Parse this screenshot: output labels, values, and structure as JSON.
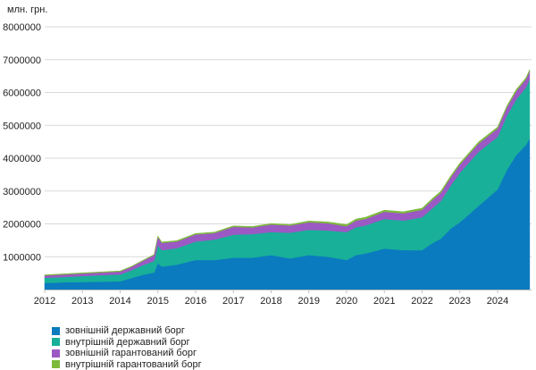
{
  "chart_data": {
    "type": "area",
    "stacked": true,
    "title": "",
    "ylabel": "млн. грн.",
    "xlabel": "",
    "ylim": [
      0,
      8000000
    ],
    "yticks": [
      1000000,
      2000000,
      3000000,
      4000000,
      5000000,
      6000000,
      7000000,
      8000000
    ],
    "xlim": [
      2012.0,
      2024.9
    ],
    "xticks": [
      "2012",
      "2013",
      "2014",
      "2015",
      "2016",
      "2017",
      "2018",
      "2019",
      "2020",
      "2021",
      "2022",
      "2023",
      "2024"
    ],
    "grid": "horizontal",
    "legend_position": "bottom-left",
    "x": [
      2012.0,
      2012.5,
      2013.0,
      2013.5,
      2014.0,
      2014.3,
      2014.6,
      2014.9,
      2015.0,
      2015.1,
      2015.5,
      2016.0,
      2016.5,
      2017.0,
      2017.5,
      2018.0,
      2018.5,
      2019.0,
      2019.5,
      2020.0,
      2020.25,
      2020.5,
      2021.0,
      2021.5,
      2022.0,
      2022.25,
      2022.5,
      2022.75,
      2023.0,
      2023.5,
      2024.0,
      2024.25,
      2024.5,
      2024.75,
      2024.85
    ],
    "series": [
      {
        "name": "зовнішній державний борг",
        "color": "#0a7bbf",
        "values": [
          200000,
          220000,
          230000,
          240000,
          250000,
          350000,
          450000,
          520000,
          800000,
          700000,
          760000,
          900000,
          900000,
          970000,
          970000,
          1050000,
          950000,
          1050000,
          1000000,
          900000,
          1050000,
          1100000,
          1250000,
          1200000,
          1200000,
          1400000,
          1550000,
          1850000,
          2050000,
          2550000,
          3050000,
          3650000,
          4100000,
          4400000,
          4600000
        ]
      },
      {
        "name": "внутрішній державний борг",
        "color": "#18b098",
        "values": [
          160000,
          160000,
          180000,
          200000,
          210000,
          240000,
          290000,
          350000,
          550000,
          500000,
          500000,
          560000,
          620000,
          700000,
          720000,
          700000,
          780000,
          770000,
          800000,
          850000,
          850000,
          850000,
          900000,
          900000,
          1000000,
          1050000,
          1150000,
          1300000,
          1500000,
          1650000,
          1600000,
          1650000,
          1700000,
          1750000,
          1800000
        ]
      },
      {
        "name": "зовнішній гарантований борг",
        "color": "#9b59c4",
        "values": [
          70000,
          80000,
          80000,
          80000,
          90000,
          100000,
          130000,
          180000,
          250000,
          220000,
          200000,
          220000,
          200000,
          240000,
          200000,
          230000,
          220000,
          230000,
          220000,
          180000,
          200000,
          200000,
          220000,
          220000,
          230000,
          250000,
          250000,
          250000,
          250000,
          250000,
          250000,
          250000,
          250000,
          250000,
          250000
        ]
      },
      {
        "name": "внутрішній гарантований борг",
        "color": "#7dba3b",
        "values": [
          20000,
          20000,
          20000,
          20000,
          20000,
          20000,
          20000,
          20000,
          30000,
          30000,
          30000,
          30000,
          30000,
          30000,
          30000,
          30000,
          30000,
          40000,
          40000,
          50000,
          50000,
          50000,
          50000,
          50000,
          50000,
          50000,
          50000,
          50000,
          50000,
          50000,
          50000,
          50000,
          50000,
          50000,
          50000
        ]
      }
    ]
  }
}
